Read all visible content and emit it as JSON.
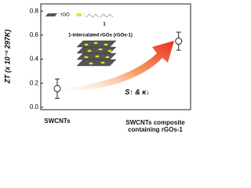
{
  "chart_data": {
    "type": "scatter",
    "y_label": "ZT (x 10⁻² 297K)",
    "categories": [
      "SWCNTs",
      "SWCNTs composite containing rGOs-1"
    ],
    "values": [
      0.155,
      0.55
    ],
    "errors": [
      0.08,
      0.075
    ],
    "ylim": [
      -0.02,
      0.86
    ],
    "yticks": [
      {
        "value": 0,
        "label": "0.0"
      },
      0.2,
      0.4,
      0.6,
      0.8
    ],
    "marker_color": "#222222",
    "annotations": {
      "rgo_legend": ": rGO",
      "molecule_label": "1",
      "intercalated": "1-intercalated rGOs (rGOs-1)",
      "effect": "S↑ & κ↓"
    }
  }
}
